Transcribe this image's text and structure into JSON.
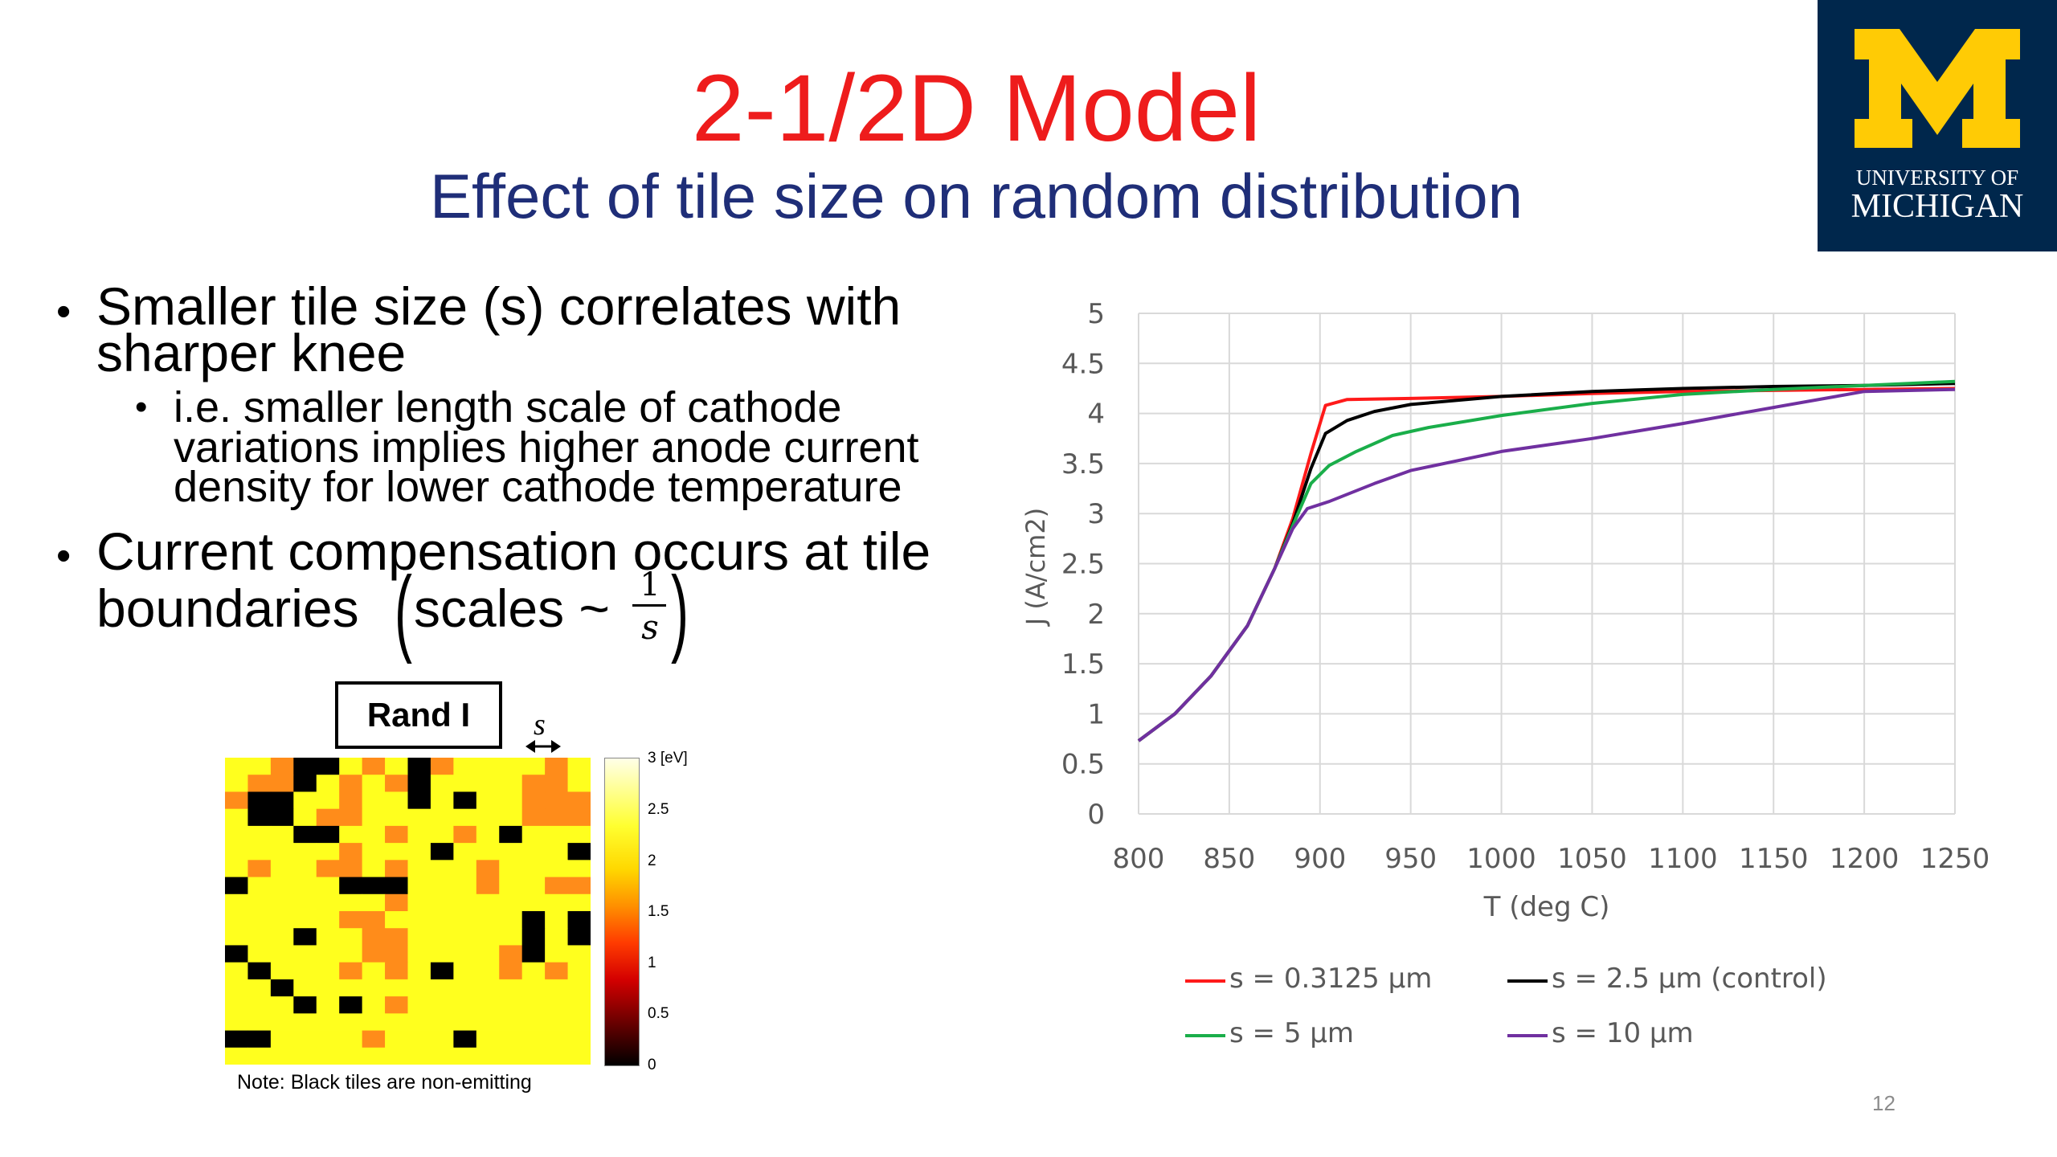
{
  "slide": {
    "title": "2-1/2D Model",
    "subtitle": "Effect of tile size on random distribution",
    "page_number": "12"
  },
  "logo": {
    "line1": "UNIVERSITY OF",
    "line2": "MICHIGAN",
    "colors": {
      "blue": "#00274c",
      "maize": "#ffcb05"
    }
  },
  "bullets": {
    "b1_line1": "Smaller tile size (s) correlates with",
    "b1_line2": "sharper knee",
    "b1_sub_line1": "i.e. smaller length scale of cathode",
    "b1_sub_line2": "variations implies higher anode current",
    "b1_sub_line3": "density for lower cathode temperature",
    "b2_line1": "Current compensation occurs at tile",
    "b2_line2_prefix": "boundaries",
    "b2_formula_text": "scales ~",
    "b2_frac_num": "1",
    "b2_frac_den": "s"
  },
  "heatmap": {
    "label": "Rand I",
    "tile_label": "s",
    "colorbar_unit": "3 [eV]",
    "colorbar_ticks": [
      "2.5",
      "2",
      "1.5",
      "1",
      "0.5",
      "0"
    ],
    "note": "Note: Black tiles are non-emitting",
    "grid": [
      [
        1,
        1,
        2,
        0,
        0,
        1,
        2,
        1,
        0,
        2,
        1,
        1,
        1,
        1,
        2,
        1
      ],
      [
        1,
        2,
        2,
        0,
        1,
        2,
        1,
        2,
        0,
        1,
        1,
        1,
        1,
        2,
        2,
        1
      ],
      [
        2,
        0,
        0,
        1,
        1,
        2,
        1,
        1,
        0,
        1,
        0,
        1,
        1,
        2,
        2,
        2
      ],
      [
        1,
        0,
        0,
        1,
        2,
        2,
        1,
        1,
        1,
        1,
        1,
        1,
        1,
        2,
        2,
        2
      ],
      [
        1,
        1,
        1,
        0,
        0,
        1,
        1,
        2,
        1,
        1,
        2,
        1,
        0,
        1,
        1,
        1
      ],
      [
        1,
        1,
        1,
        1,
        1,
        2,
        1,
        1,
        1,
        0,
        1,
        1,
        1,
        1,
        1,
        0
      ],
      [
        1,
        2,
        1,
        1,
        2,
        2,
        1,
        2,
        1,
        1,
        1,
        2,
        1,
        1,
        1,
        1
      ],
      [
        0,
        1,
        1,
        1,
        1,
        0,
        0,
        0,
        1,
        1,
        1,
        2,
        1,
        1,
        2,
        2
      ],
      [
        1,
        1,
        1,
        1,
        1,
        1,
        1,
        2,
        1,
        1,
        1,
        1,
        1,
        1,
        1,
        1
      ],
      [
        1,
        1,
        1,
        1,
        1,
        2,
        2,
        1,
        1,
        1,
        1,
        1,
        1,
        0,
        1,
        0
      ],
      [
        1,
        1,
        1,
        0,
        1,
        1,
        2,
        2,
        1,
        1,
        1,
        1,
        1,
        0,
        1,
        0
      ],
      [
        0,
        1,
        1,
        1,
        1,
        1,
        2,
        2,
        1,
        1,
        1,
        1,
        2,
        0,
        1,
        1
      ],
      [
        1,
        0,
        1,
        1,
        1,
        2,
        1,
        2,
        1,
        0,
        1,
        1,
        2,
        1,
        2,
        1
      ],
      [
        1,
        1,
        0,
        1,
        1,
        1,
        1,
        1,
        1,
        1,
        1,
        1,
        1,
        1,
        1,
        1
      ],
      [
        1,
        1,
        1,
        0,
        1,
        0,
        1,
        2,
        1,
        1,
        1,
        1,
        1,
        1,
        1,
        1
      ],
      [
        1,
        1,
        1,
        1,
        1,
        1,
        1,
        1,
        1,
        1,
        1,
        1,
        1,
        1,
        1,
        1
      ],
      [
        0,
        0,
        1,
        1,
        1,
        1,
        2,
        1,
        1,
        1,
        0,
        1,
        1,
        1,
        1,
        1
      ],
      [
        1,
        1,
        1,
        1,
        1,
        1,
        1,
        1,
        1,
        1,
        1,
        1,
        1,
        1,
        1,
        1
      ]
    ],
    "tile_colors": {
      "0": "#000000",
      "1": "#ffff1e",
      "2": "#ff8c1a"
    }
  },
  "chart_data": {
    "type": "line",
    "xlabel": "T (deg C)",
    "ylabel": "J (A/cm2)",
    "xlim": [
      800,
      1250
    ],
    "ylim": [
      0,
      5
    ],
    "xticks": [
      "800",
      "850",
      "900",
      "950",
      "1000",
      "1050",
      "1100",
      "1150",
      "1200",
      "1250"
    ],
    "yticks": [
      "0",
      "0.5",
      "1",
      "1.5",
      "2",
      "2.5",
      "3",
      "3.5",
      "4",
      "4.5",
      "5"
    ],
    "grid": true,
    "legend_position": "bottom",
    "series": [
      {
        "name": "s = 0.3125 µm",
        "color": "#ff1a1a",
        "points": [
          [
            800,
            0.73
          ],
          [
            820,
            1.0
          ],
          [
            840,
            1.38
          ],
          [
            860,
            1.88
          ],
          [
            875,
            2.45
          ],
          [
            885,
            2.95
          ],
          [
            895,
            3.6
          ],
          [
            903,
            4.08
          ],
          [
            915,
            4.14
          ],
          [
            950,
            4.15
          ],
          [
            1000,
            4.17
          ],
          [
            1050,
            4.2
          ],
          [
            1100,
            4.22
          ],
          [
            1150,
            4.23
          ],
          [
            1200,
            4.24
          ],
          [
            1250,
            4.25
          ]
        ]
      },
      {
        "name": "s = 2.5 µm (control)",
        "color": "#000000",
        "points": [
          [
            800,
            0.73
          ],
          [
            820,
            1.0
          ],
          [
            840,
            1.38
          ],
          [
            860,
            1.88
          ],
          [
            875,
            2.45
          ],
          [
            885,
            2.9
          ],
          [
            895,
            3.45
          ],
          [
            903,
            3.8
          ],
          [
            915,
            3.93
          ],
          [
            930,
            4.02
          ],
          [
            950,
            4.09
          ],
          [
            1000,
            4.17
          ],
          [
            1050,
            4.22
          ],
          [
            1100,
            4.25
          ],
          [
            1150,
            4.27
          ],
          [
            1200,
            4.28
          ],
          [
            1250,
            4.3
          ]
        ]
      },
      {
        "name": "s = 5 µm",
        "color": "#1aae4a",
        "points": [
          [
            800,
            0.73
          ],
          [
            820,
            1.0
          ],
          [
            840,
            1.38
          ],
          [
            860,
            1.88
          ],
          [
            875,
            2.45
          ],
          [
            885,
            2.88
          ],
          [
            895,
            3.3
          ],
          [
            905,
            3.48
          ],
          [
            920,
            3.62
          ],
          [
            940,
            3.78
          ],
          [
            960,
            3.86
          ],
          [
            1000,
            3.98
          ],
          [
            1050,
            4.1
          ],
          [
            1100,
            4.19
          ],
          [
            1150,
            4.24
          ],
          [
            1200,
            4.28
          ],
          [
            1250,
            4.32
          ]
        ]
      },
      {
        "name": "s = 10 µm",
        "color": "#7030a0",
        "points": [
          [
            800,
            0.73
          ],
          [
            820,
            1.0
          ],
          [
            840,
            1.38
          ],
          [
            860,
            1.88
          ],
          [
            875,
            2.45
          ],
          [
            885,
            2.85
          ],
          [
            893,
            3.05
          ],
          [
            905,
            3.12
          ],
          [
            930,
            3.3
          ],
          [
            950,
            3.43
          ],
          [
            1000,
            3.62
          ],
          [
            1050,
            3.75
          ],
          [
            1100,
            3.9
          ],
          [
            1150,
            4.06
          ],
          [
            1200,
            4.22
          ],
          [
            1250,
            4.24
          ]
        ]
      }
    ]
  }
}
